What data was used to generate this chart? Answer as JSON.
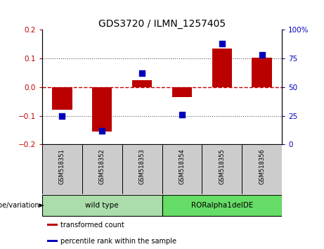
{
  "title": "GDS3720 / ILMN_1257405",
  "samples": [
    "GSM518351",
    "GSM518352",
    "GSM518353",
    "GSM518354",
    "GSM518355",
    "GSM518356"
  ],
  "transformed_count": [
    -0.08,
    -0.155,
    0.025,
    -0.035,
    0.135,
    0.103
  ],
  "percentile_rank": [
    25,
    12,
    62,
    26,
    88,
    78
  ],
  "ylim_left": [
    -0.2,
    0.2
  ],
  "ylim_right": [
    0,
    100
  ],
  "yticks_left": [
    -0.2,
    -0.1,
    0.0,
    0.1,
    0.2
  ],
  "yticks_right": [
    0,
    25,
    50,
    75,
    100
  ],
  "ytick_labels_right": [
    "0",
    "25",
    "50",
    "75",
    "100%"
  ],
  "bar_color": "#bb0000",
  "dot_color": "#0000bb",
  "zero_line_color": "#cc0000",
  "dotted_line_color": "#555555",
  "groups": [
    {
      "label": "wild type",
      "samples": [
        0,
        1,
        2
      ],
      "color": "#aaddaa"
    },
    {
      "label": "RORalpha1delDE",
      "samples": [
        3,
        4,
        5
      ],
      "color": "#66dd66"
    }
  ],
  "genotype_label": "genotype/variation",
  "legend_items": [
    {
      "label": "transformed count",
      "color": "#bb0000"
    },
    {
      "label": "percentile rank within the sample",
      "color": "#0000bb"
    }
  ],
  "bar_width": 0.5,
  "dot_size": 40,
  "plot_bg_color": "#ffffff",
  "cell_bg_color": "#cccccc",
  "outer_bg_color": "#ffffff"
}
